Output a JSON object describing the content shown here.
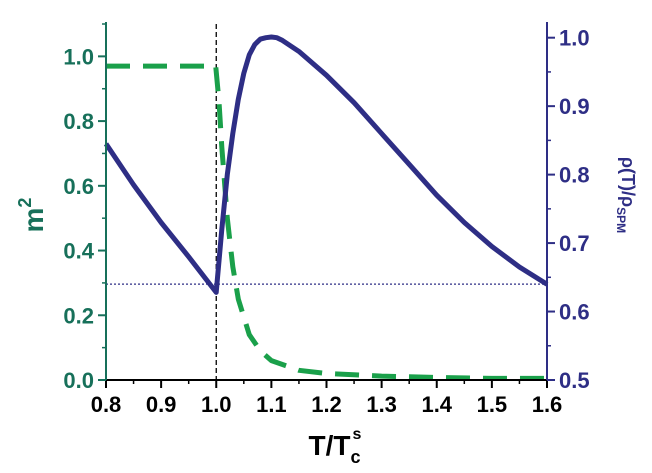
{
  "chart_data": {
    "type": "line",
    "x_axis": {
      "label_main": "T/T",
      "label_sub": "c",
      "label_sup": "s",
      "range": [
        0.8,
        1.6
      ],
      "ticks": [
        0.8,
        0.9,
        1.0,
        1.1,
        1.2,
        1.3,
        1.4,
        1.5,
        1.6
      ],
      "tick_labels": [
        "0.8",
        "0.9",
        "1.0",
        "1.1",
        "1.2",
        "1.3",
        "1.4",
        "1.5",
        "1.6"
      ]
    },
    "y_left": {
      "label_main": "m",
      "label_sup": "2",
      "range": [
        0.0,
        1.1
      ],
      "ticks": [
        0.0,
        0.2,
        0.4,
        0.6,
        0.8,
        1.0
      ],
      "tick_labels": [
        "0.0",
        "0.2",
        "0.4",
        "0.6",
        "0.8",
        "1.0"
      ],
      "color": "#17705a"
    },
    "y_right": {
      "label_parts": [
        "ρ(T)/ρ",
        "SPM"
      ],
      "range": [
        0.5,
        1.02
      ],
      "ticks": [
        0.5,
        0.6,
        0.7,
        0.8,
        0.9,
        1.0
      ],
      "tick_labels": [
        "0.5",
        "0.6",
        "0.7",
        "0.8",
        "0.9",
        "1.0"
      ],
      "color": "#2e2e85"
    },
    "series": [
      {
        "axis": "left",
        "style": "dashed",
        "color": "#1aa04a",
        "x": [
          0.8,
          0.9,
          0.999,
          1.005,
          1.01,
          1.02,
          1.03,
          1.04,
          1.06,
          1.08,
          1.1,
          1.15,
          1.2,
          1.3,
          1.4,
          1.5,
          1.6
        ],
        "y": [
          0.97,
          0.97,
          0.97,
          0.86,
          0.72,
          0.5,
          0.35,
          0.25,
          0.14,
          0.09,
          0.06,
          0.03,
          0.02,
          0.012,
          0.008,
          0.005,
          0.005
        ]
      },
      {
        "axis": "right",
        "style": "solid",
        "color": "#2e2e85",
        "x": [
          0.8,
          0.85,
          0.9,
          0.95,
          1.0,
          1.01,
          1.02,
          1.03,
          1.04,
          1.05,
          1.06,
          1.07,
          1.08,
          1.09,
          1.1,
          1.11,
          1.12,
          1.15,
          1.2,
          1.25,
          1.3,
          1.35,
          1.4,
          1.45,
          1.5,
          1.55,
          1.6
        ],
        "y": [
          0.845,
          0.785,
          0.73,
          0.68,
          0.628,
          0.72,
          0.8,
          0.86,
          0.91,
          0.948,
          0.975,
          0.99,
          0.998,
          1.0,
          1.001,
          1.0,
          0.996,
          0.98,
          0.945,
          0.905,
          0.86,
          0.815,
          0.77,
          0.73,
          0.695,
          0.665,
          0.64
        ]
      }
    ],
    "reference_lines": [
      {
        "kind": "vertical",
        "axis": "x",
        "value": 1.0,
        "style": "dashed"
      },
      {
        "kind": "horizontal",
        "axis": "right",
        "value": 0.64,
        "style": "dotted"
      }
    ],
    "grid": false,
    "legend": "none"
  }
}
